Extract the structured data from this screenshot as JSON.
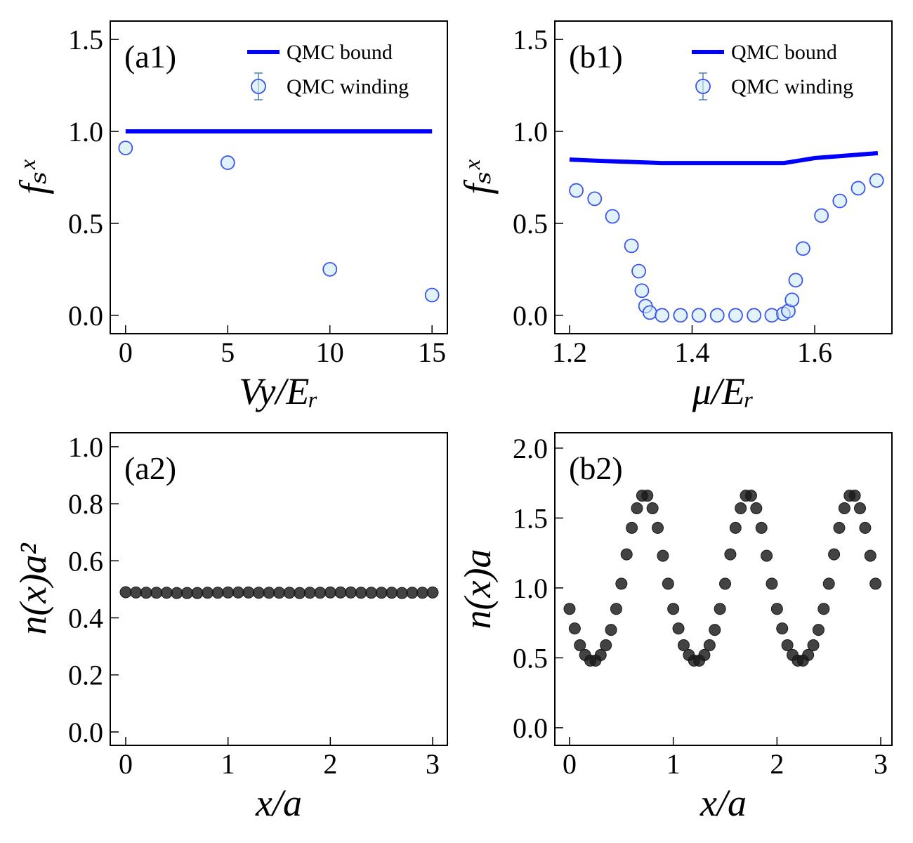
{
  "chart_data": [
    {
      "type": "line",
      "label": "(a1)",
      "xlabel": "Vy/Eᵣ",
      "ylabel": "fₛˣ",
      "xlim": [
        -0.75,
        15.75
      ],
      "xticks": [
        0,
        5,
        10,
        15
      ],
      "ylim": [
        -0.1,
        1.6
      ],
      "yticks": [
        {
          "value": 0,
          "label": "0.0"
        },
        0.5,
        {
          "value": 1,
          "label": "1.0"
        },
        1.5
      ],
      "legend": "upper right",
      "series": [
        {
          "name": "QMC bound",
          "mode": "line",
          "color": "#0000ff",
          "x": [
            0,
            15
          ],
          "values": [
            1.0,
            1.0
          ]
        },
        {
          "name": "QMC winding",
          "mode": "markers",
          "color": "#3a55ee",
          "x": [
            0,
            5,
            10,
            15
          ],
          "values": [
            0.91,
            0.83,
            0.25,
            0.11
          ]
        }
      ]
    },
    {
      "type": "line",
      "label": "(b1)",
      "xlabel": "μ/Eᵣ",
      "ylabel": "fₛˣ",
      "xlim": [
        1.176,
        1.726
      ],
      "xticks": [
        1.2,
        1.4,
        1.6
      ],
      "ylim": [
        -0.1,
        1.6
      ],
      "yticks": [
        {
          "value": 0,
          "label": "0.0"
        },
        0.5,
        {
          "value": 1,
          "label": "1.0"
        },
        1.5
      ],
      "legend": "upper right",
      "series": [
        {
          "name": "QMC bound",
          "mode": "line",
          "color": "#0000ff",
          "x": [
            1.2,
            1.25,
            1.35,
            1.55,
            1.6,
            1.703
          ],
          "values": [
            0.847,
            0.84,
            0.828,
            0.828,
            0.855,
            0.882
          ]
        },
        {
          "name": "QMC winding",
          "mode": "markers",
          "color": "#3a55ee",
          "x": [
            1.211,
            1.241,
            1.27,
            1.301,
            1.313,
            1.318,
            1.324,
            1.331,
            1.351,
            1.381,
            1.411,
            1.441,
            1.471,
            1.501,
            1.53,
            1.549,
            1.557,
            1.563,
            1.569,
            1.581,
            1.611,
            1.641,
            1.671,
            1.701
          ],
          "values": [
            0.679,
            0.634,
            0.538,
            0.378,
            0.24,
            0.134,
            0.05,
            0.015,
            0,
            0,
            0,
            0,
            0,
            0,
            0,
            0.008,
            0.023,
            0.084,
            0.191,
            0.363,
            0.542,
            0.622,
            0.691,
            0.733
          ]
        }
      ]
    },
    {
      "type": "scatter",
      "label": "(a2)",
      "xlabel": "x/a",
      "ylabel": "n(x)a²",
      "xlim": [
        -0.151,
        3.144
      ],
      "xticks": [
        0,
        1,
        2,
        3
      ],
      "ylim": [
        -0.047,
        1.049
      ],
      "yticks": [
        {
          "value": 0,
          "label": "0.0"
        },
        0.2,
        0.4,
        0.6,
        0.8,
        {
          "value": 1,
          "label": "1.0"
        }
      ],
      "series": [
        {
          "color": "#1a1a1a",
          "x": [
            0,
            0.1,
            0.2,
            0.3,
            0.4,
            0.5,
            0.6,
            0.7,
            0.8,
            0.9,
            1,
            1.1,
            1.2,
            1.3,
            1.4,
            1.5,
            1.6,
            1.7,
            1.8,
            1.9,
            2,
            2.1,
            2.2,
            2.3,
            2.4,
            2.5,
            2.6,
            2.7,
            2.8,
            2.9,
            3
          ],
          "values": [
            0.49,
            0.489,
            0.488,
            0.488,
            0.488,
            0.487,
            0.487,
            0.487,
            0.488,
            0.488,
            0.489,
            0.489,
            0.489,
            0.488,
            0.488,
            0.488,
            0.488,
            0.487,
            0.488,
            0.488,
            0.489,
            0.489,
            0.489,
            0.488,
            0.488,
            0.488,
            0.488,
            0.487,
            0.488,
            0.488,
            0.489
          ]
        }
      ]
    },
    {
      "type": "scatter",
      "label": "(b2)",
      "xlabel": "x/a",
      "ylabel": "n(x)a",
      "xlim": [
        -0.142,
        3.108
      ],
      "xticks": [
        0,
        1,
        2,
        3
      ],
      "ylim": [
        -0.126,
        2.11
      ],
      "yticks": [
        {
          "value": 0,
          "label": "0.0"
        },
        0.5,
        {
          "value": 1,
          "label": "1.0"
        },
        1.5,
        {
          "value": 2,
          "label": "2.0"
        }
      ],
      "series": [
        {
          "color": "#1a1a1a",
          "x": [
            0,
            0.05,
            0.1,
            0.15,
            0.2,
            0.25,
            0.3,
            0.35,
            0.4,
            0.45,
            0.5,
            0.55,
            0.6,
            0.65,
            0.7,
            0.75,
            0.8,
            0.85,
            0.9,
            0.95,
            1,
            1.05,
            1.1,
            1.15,
            1.2,
            1.25,
            1.3,
            1.35,
            1.4,
            1.45,
            1.5,
            1.55,
            1.6,
            1.65,
            1.7,
            1.75,
            1.8,
            1.85,
            1.9,
            1.95,
            2,
            2.05,
            2.1,
            2.15,
            2.2,
            2.25,
            2.3,
            2.35,
            2.4,
            2.45,
            2.5,
            2.55,
            2.6,
            2.65,
            2.7,
            2.75,
            2.8,
            2.85,
            2.9,
            2.95
          ],
          "values": [
            0.85,
            0.71,
            0.59,
            0.52,
            0.48,
            0.48,
            0.52,
            0.59,
            0.7,
            0.85,
            1.03,
            1.24,
            1.43,
            1.57,
            1.66,
            1.66,
            1.57,
            1.43,
            1.23,
            1.03,
            0.85,
            0.71,
            0.59,
            0.52,
            0.48,
            0.48,
            0.52,
            0.59,
            0.7,
            0.85,
            1.03,
            1.24,
            1.43,
            1.57,
            1.66,
            1.66,
            1.57,
            1.43,
            1.23,
            1.03,
            0.85,
            0.71,
            0.59,
            0.52,
            0.48,
            0.48,
            0.52,
            0.59,
            0.7,
            0.85,
            1.03,
            1.24,
            1.43,
            1.57,
            1.66,
            1.66,
            1.57,
            1.43,
            1.23,
            1.03
          ]
        }
      ]
    }
  ]
}
